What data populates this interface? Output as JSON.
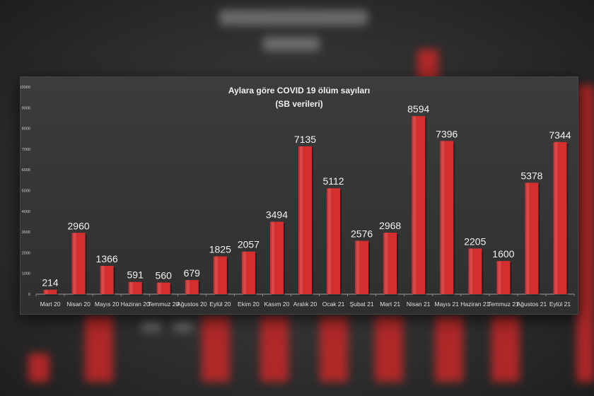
{
  "chart_data": {
    "type": "bar",
    "title": "Aylara göre COVID 19 ölüm sayıları",
    "subtitle": "(SB verileri)",
    "xlabel": "",
    "ylabel": "",
    "ylim": [
      0,
      10000
    ],
    "yticks": [
      0,
      1000,
      2000,
      3000,
      4000,
      5000,
      6000,
      7000,
      8000,
      9000,
      10000
    ],
    "categories": [
      "Mart 20",
      "Nisan 20",
      "Mayıs 20",
      "Haziran 20",
      "Temmuz 20",
      "Ağustos 20",
      "Eylül 20",
      "Ekim 20",
      "Kasım 20",
      "Aralık 20",
      "Ocak 21",
      "Şubat 21",
      "Mart 21",
      "Nisan 21",
      "Mayıs 21",
      "Haziran 21",
      "Temmuz 21",
      "Ağustos 21",
      "Eylül 21"
    ],
    "values": [
      214,
      2960,
      1366,
      591,
      560,
      679,
      1825,
      2057,
      3494,
      7135,
      5112,
      2576,
      2968,
      8594,
      7396,
      2205,
      1600,
      5378,
      7344
    ],
    "bar_color": "#d32f2f",
    "background_color": "#333333",
    "grid": false,
    "legend": "none",
    "data_labels": true
  }
}
